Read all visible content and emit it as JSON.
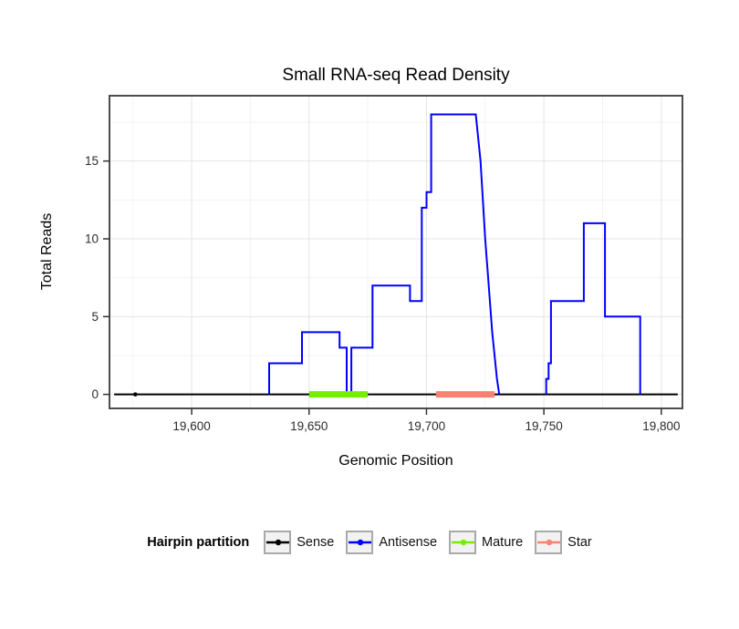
{
  "chart_data": {
    "type": "line",
    "title": "Small RNA-seq Read Density",
    "xlabel": "Genomic Position",
    "ylabel": "Total Reads",
    "xlim": [
      19565,
      19809
    ],
    "ylim": [
      -0.9,
      19.2
    ],
    "grid": true,
    "legend_position": "bottom",
    "legend_title": "Hairpin partition",
    "x_ticks": [
      {
        "value": 19600,
        "label": "19,600"
      },
      {
        "value": 19650,
        "label": "19,650"
      },
      {
        "value": 19700,
        "label": "19,700"
      },
      {
        "value": 19750,
        "label": "19,750"
      },
      {
        "value": 19800,
        "label": "19,800"
      }
    ],
    "x_minor_ticks": [
      19575,
      19625,
      19675,
      19725,
      19775
    ],
    "y_ticks": [
      {
        "value": 0,
        "label": "0"
      },
      {
        "value": 5,
        "label": "5"
      },
      {
        "value": 10,
        "label": "10"
      },
      {
        "value": 15,
        "label": "15"
      }
    ],
    "y_minor_ticks": [
      2.5,
      7.5,
      12.5,
      17.5
    ],
    "series": [
      {
        "name": "Sense",
        "color": "#000000",
        "line_width": 2,
        "segments": [
          [
            [
              19567,
              0
            ],
            [
              19807,
              0
            ]
          ]
        ],
        "points": [
          [
            19576,
            0
          ]
        ]
      },
      {
        "name": "Antisense",
        "color": "#0000FF",
        "line_width": 2,
        "segments": [
          [
            [
              19633,
              0
            ],
            [
              19633,
              2
            ],
            [
              19647,
              2
            ],
            [
              19647,
              4
            ],
            [
              19663,
              4
            ],
            [
              19663,
              3
            ],
            [
              19666,
              3
            ],
            [
              19666,
              0
            ],
            [
              19668,
              0
            ],
            [
              19668,
              3
            ],
            [
              19677,
              3
            ],
            [
              19677,
              7
            ],
            [
              19693,
              7
            ],
            [
              19693,
              6
            ],
            [
              19698,
              6
            ],
            [
              19698,
              12
            ],
            [
              19700,
              12
            ],
            [
              19700,
              13
            ],
            [
              19702,
              13
            ],
            [
              19702,
              18
            ],
            [
              19721,
              18
            ],
            [
              19723,
              15
            ],
            [
              19725,
              10
            ],
            [
              19726,
              8
            ],
            [
              19728,
              4
            ],
            [
              19730,
              1
            ],
            [
              19731,
              0
            ]
          ],
          [
            [
              19751,
              0
            ],
            [
              19751,
              1
            ],
            [
              19752,
              1
            ],
            [
              19752,
              2
            ],
            [
              19753,
              2
            ],
            [
              19753,
              6
            ],
            [
              19767,
              6
            ],
            [
              19767,
              11
            ],
            [
              19776,
              11
            ],
            [
              19776,
              5
            ],
            [
              19791,
              5
            ],
            [
              19791,
              0
            ]
          ]
        ]
      },
      {
        "name": "Mature",
        "color": "#76EE00",
        "line_width": 7,
        "segments": [
          [
            [
              19650,
              0
            ],
            [
              19675,
              0
            ]
          ]
        ]
      },
      {
        "name": "Star",
        "color": "#FA8072",
        "line_width": 7,
        "segments": [
          [
            [
              19704,
              0
            ],
            [
              19729,
              0
            ]
          ]
        ]
      }
    ]
  },
  "colors": {
    "panel_bg": "#FFFFFF",
    "panel_border": "#4D4D4D",
    "grid_major": "#E4E4E4",
    "grid_minor": "#F3F3F3",
    "axis_tick": "#333333",
    "tick_label": "#2B2B2B",
    "legend_key_bg": "#F2F2F2",
    "legend_key_border": "#A9A9A9"
  }
}
